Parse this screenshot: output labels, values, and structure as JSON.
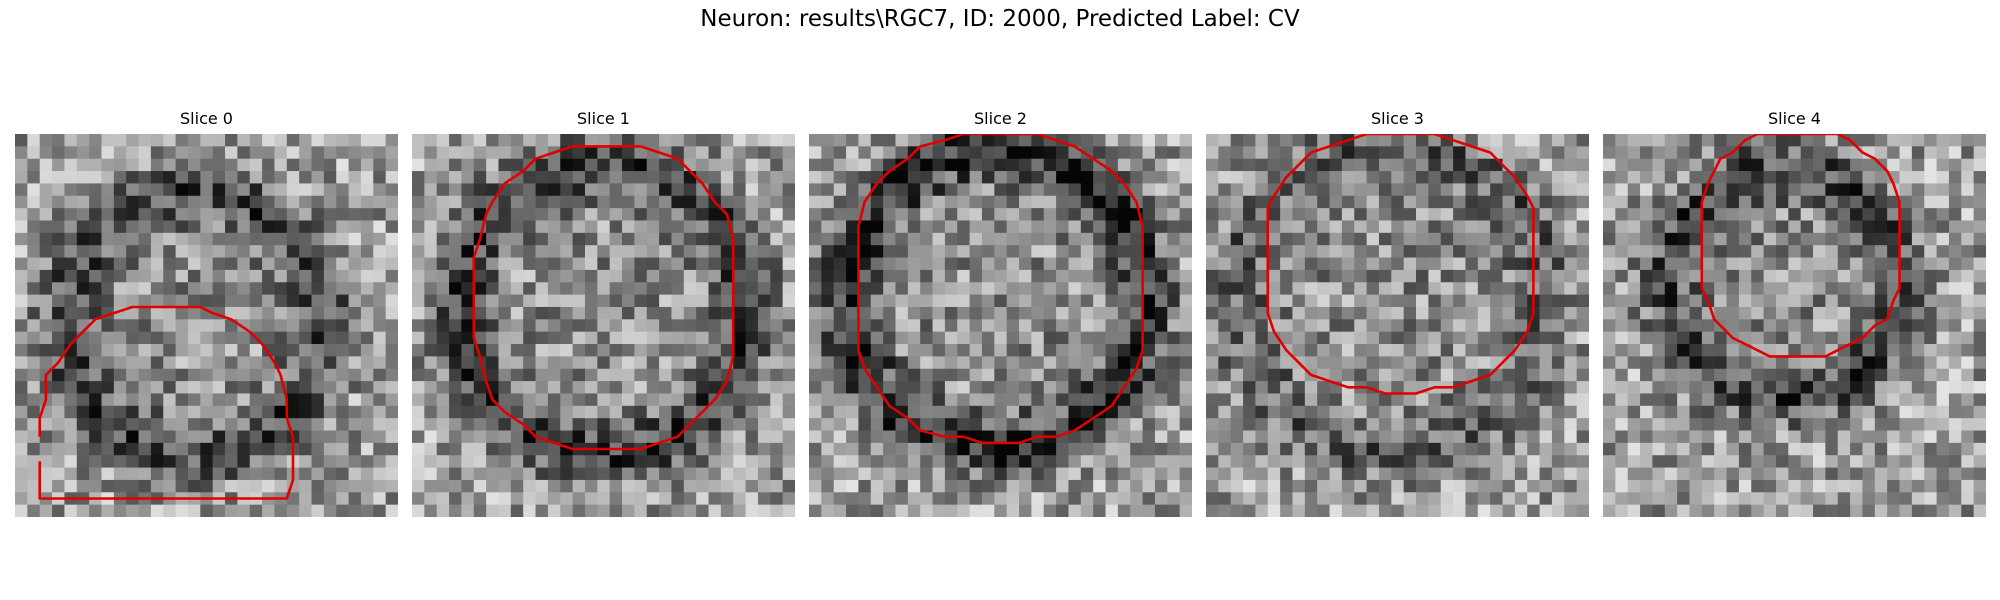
{
  "figure": {
    "title": "Neuron: results\\RGC7, ID: 2000, Predicted Label: CV",
    "contour_color": "#e00000",
    "panels": [
      {
        "label": "Slice 0"
      },
      {
        "label": "Slice 1"
      },
      {
        "label": "Slice 2"
      },
      {
        "label": "Slice 3"
      },
      {
        "label": "Slice 4"
      }
    ]
  }
}
